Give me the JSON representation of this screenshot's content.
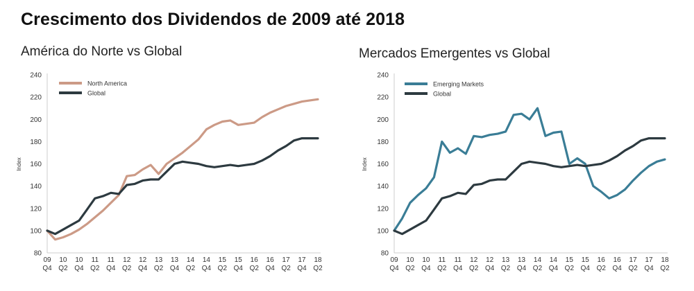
{
  "title": "Crescimento dos Dividendos de 2009 até 2018",
  "colors": {
    "north_america": "#cc9a86",
    "emerging": "#3a7d96",
    "global": "#2d3a40",
    "axis": "#cccccc"
  },
  "chart_data": [
    {
      "type": "line",
      "title": "América do Norte vs Global",
      "ylabel": "Index",
      "ylim": [
        80,
        240
      ],
      "yticks": [
        80,
        100,
        120,
        140,
        160,
        180,
        200,
        220,
        240
      ],
      "xtick_labels": [
        {
          "year": "09",
          "q": "Q4"
        },
        {
          "year": "10",
          "q": "Q2"
        },
        {
          "year": "10",
          "q": "Q4"
        },
        {
          "year": "11",
          "q": "Q2"
        },
        {
          "year": "11",
          "q": "Q4"
        },
        {
          "year": "12",
          "q": "Q2"
        },
        {
          "year": "12",
          "q": "Q4"
        },
        {
          "year": "13",
          "q": "Q2"
        },
        {
          "year": "13",
          "q": "Q4"
        },
        {
          "year": "14",
          "q": "Q2"
        },
        {
          "year": "14",
          "q": "Q4"
        },
        {
          "year": "15",
          "q": "Q2"
        },
        {
          "year": "15",
          "q": "Q4"
        },
        {
          "year": "16",
          "q": "Q2"
        },
        {
          "year": "16",
          "q": "Q4"
        },
        {
          "year": "17",
          "q": "Q2"
        },
        {
          "year": "17",
          "q": "Q4"
        },
        {
          "year": "18",
          "q": "Q2"
        }
      ],
      "legend_position": "top-left",
      "series": [
        {
          "name": "North America",
          "color": "#cc9a86",
          "x": [
            0,
            0.5,
            1,
            1.5,
            2,
            2.5,
            3,
            3.5,
            4,
            4.5,
            5,
            5.5,
            6,
            6.5,
            7,
            7.5,
            8,
            8.5,
            9,
            9.5,
            10,
            10.5,
            11,
            11.5,
            12,
            12.5,
            13,
            13.5,
            14,
            14.5,
            15,
            15.5,
            16,
            16.5,
            17
          ],
          "values": [
            100,
            92,
            94,
            97,
            101,
            106,
            112,
            118,
            125,
            132,
            149,
            150,
            155,
            159,
            151,
            160,
            165,
            170,
            176,
            182,
            191,
            195,
            198,
            199,
            195,
            196,
            197,
            202,
            206,
            209,
            212,
            214,
            216,
            217,
            218
          ]
        },
        {
          "name": "Global",
          "color": "#2d3a40",
          "x": [
            0,
            0.5,
            1,
            1.5,
            2,
            2.5,
            3,
            3.5,
            4,
            4.5,
            5,
            5.5,
            6,
            6.5,
            7,
            7.5,
            8,
            8.5,
            9,
            9.5,
            10,
            10.5,
            11,
            11.5,
            12,
            12.5,
            13,
            13.5,
            14,
            14.5,
            15,
            15.5,
            16,
            16.5,
            17
          ],
          "values": [
            100,
            97,
            101,
            105,
            109,
            119,
            129,
            131,
            134,
            133,
            141,
            142,
            145,
            146,
            146,
            153,
            160,
            162,
            161,
            160,
            158,
            157,
            158,
            159,
            158,
            159,
            160,
            163,
            167,
            172,
            176,
            181,
            183,
            183,
            183
          ]
        }
      ]
    },
    {
      "type": "line",
      "title": "Mercados Emergentes vs Global",
      "ylabel": "Index",
      "ylim": [
        80,
        240
      ],
      "yticks": [
        80,
        100,
        120,
        140,
        160,
        180,
        200,
        220,
        240
      ],
      "xtick_labels": [
        {
          "year": "09",
          "q": "Q4"
        },
        {
          "year": "10",
          "q": "Q2"
        },
        {
          "year": "10",
          "q": "Q4"
        },
        {
          "year": "11",
          "q": "Q2"
        },
        {
          "year": "11",
          "q": "Q4"
        },
        {
          "year": "12",
          "q": "Q2"
        },
        {
          "year": "12",
          "q": "Q4"
        },
        {
          "year": "13",
          "q": "Q2"
        },
        {
          "year": "13",
          "q": "Q4"
        },
        {
          "year": "14",
          "q": "Q2"
        },
        {
          "year": "14",
          "q": "Q4"
        },
        {
          "year": "15",
          "q": "Q2"
        },
        {
          "year": "15",
          "q": "Q4"
        },
        {
          "year": "16",
          "q": "Q2"
        },
        {
          "year": "16",
          "q": "Q4"
        },
        {
          "year": "17",
          "q": "Q2"
        },
        {
          "year": "17",
          "q": "Q4"
        },
        {
          "year": "18",
          "q": "Q2"
        }
      ],
      "legend_position": "top-left",
      "series": [
        {
          "name": "Emerging Markets",
          "color": "#3a7d96",
          "x": [
            0,
            0.5,
            1,
            1.5,
            2,
            2.5,
            3,
            3.5,
            4,
            4.5,
            5,
            5.5,
            6,
            6.5,
            7,
            7.5,
            8,
            8.5,
            9,
            9.5,
            10,
            10.5,
            11,
            11.5,
            12,
            12.5,
            13,
            13.5,
            14,
            14.5,
            15,
            15.5,
            16,
            16.5,
            17
          ],
          "values": [
            100,
            111,
            125,
            132,
            138,
            148,
            180,
            170,
            174,
            169,
            185,
            184,
            186,
            187,
            189,
            204,
            205,
            200,
            210,
            185,
            188,
            189,
            160,
            165,
            160,
            140,
            135,
            129,
            132,
            137,
            145,
            152,
            158,
            162,
            164
          ]
        },
        {
          "name": "Global",
          "color": "#2d3a40",
          "x": [
            0,
            0.5,
            1,
            1.5,
            2,
            2.5,
            3,
            3.5,
            4,
            4.5,
            5,
            5.5,
            6,
            6.5,
            7,
            7.5,
            8,
            8.5,
            9,
            9.5,
            10,
            10.5,
            11,
            11.5,
            12,
            12.5,
            13,
            13.5,
            14,
            14.5,
            15,
            15.5,
            16,
            16.5,
            17
          ],
          "values": [
            100,
            97,
            101,
            105,
            109,
            119,
            129,
            131,
            134,
            133,
            141,
            142,
            145,
            146,
            146,
            153,
            160,
            162,
            161,
            160,
            158,
            157,
            158,
            159,
            158,
            159,
            160,
            163,
            167,
            172,
            176,
            181,
            183,
            183,
            183
          ]
        }
      ]
    }
  ]
}
